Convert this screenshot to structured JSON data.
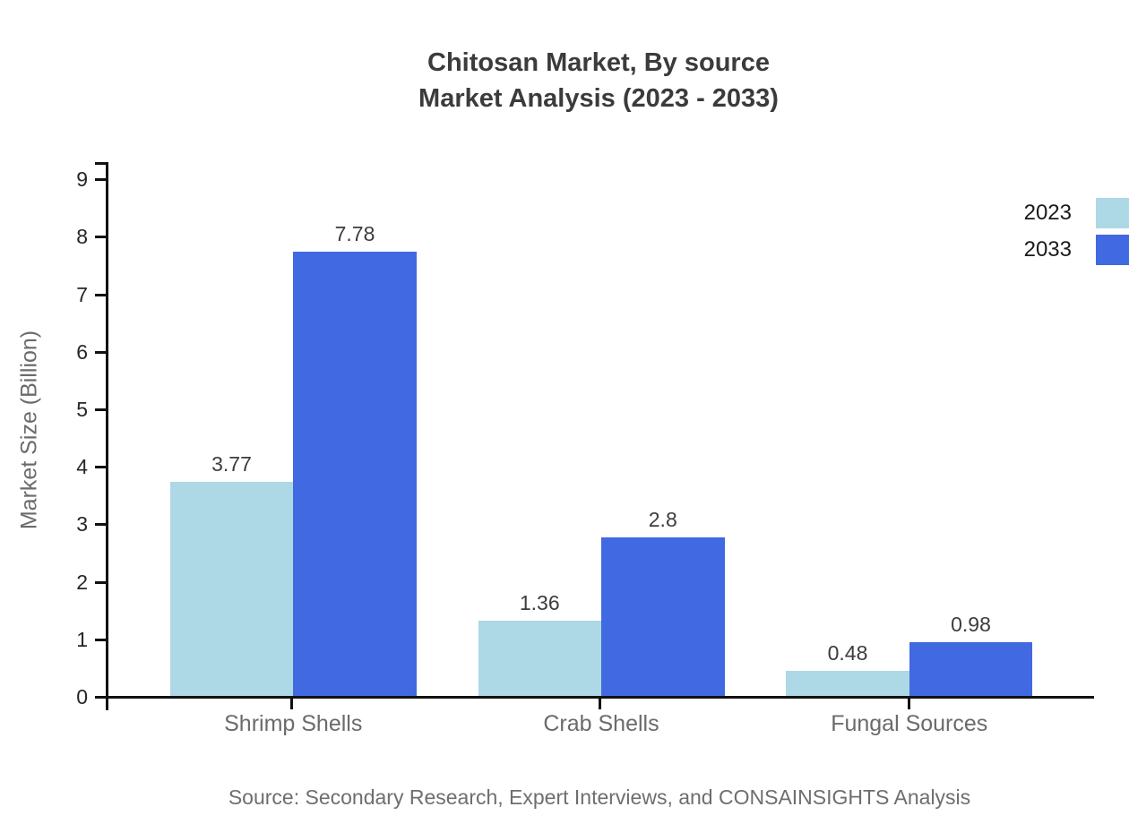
{
  "title": {
    "line1": "Chitosan Market, By source",
    "line2": "Market Analysis (2023 - 2033)"
  },
  "chart_data": {
    "type": "bar",
    "title": "Chitosan Market, By source Market Analysis (2023 - 2033)",
    "categories": [
      "Shrimp Shells",
      "Crab Shells",
      "Fungal Sources"
    ],
    "series": [
      {
        "name": "2023",
        "color": "#ADD8E6",
        "values": [
          3.77,
          1.36,
          0.48
        ]
      },
      {
        "name": "2033",
        "color": "#4169E1",
        "values": [
          7.78,
          2.8,
          0.98
        ]
      }
    ],
    "xlabel": "",
    "ylabel": "Market Size (Billion)",
    "ylim": [
      0,
      9.33
    ],
    "y_ticks": [
      0,
      1,
      2,
      3,
      4,
      5,
      6,
      7,
      8,
      9
    ],
    "grid": false,
    "legend_position": "top-right",
    "value_labels_shown": true
  },
  "footer": {
    "source_text": "Source: Secondary Research, Expert Interviews, and CONSAINSIGHTS Analysis"
  },
  "colors": {
    "series_2023": "#ADD8E6",
    "series_2033": "#4169E1",
    "axis": "#111111",
    "title_text": "#3B3B3B",
    "category_text": "#6B6B6B",
    "tick_text": "#262626",
    "value_label_text": "#3C3C3C",
    "legend_text": "#1A1A1A",
    "source_text": "#6E6E6E",
    "background": "#FFFFFF"
  }
}
